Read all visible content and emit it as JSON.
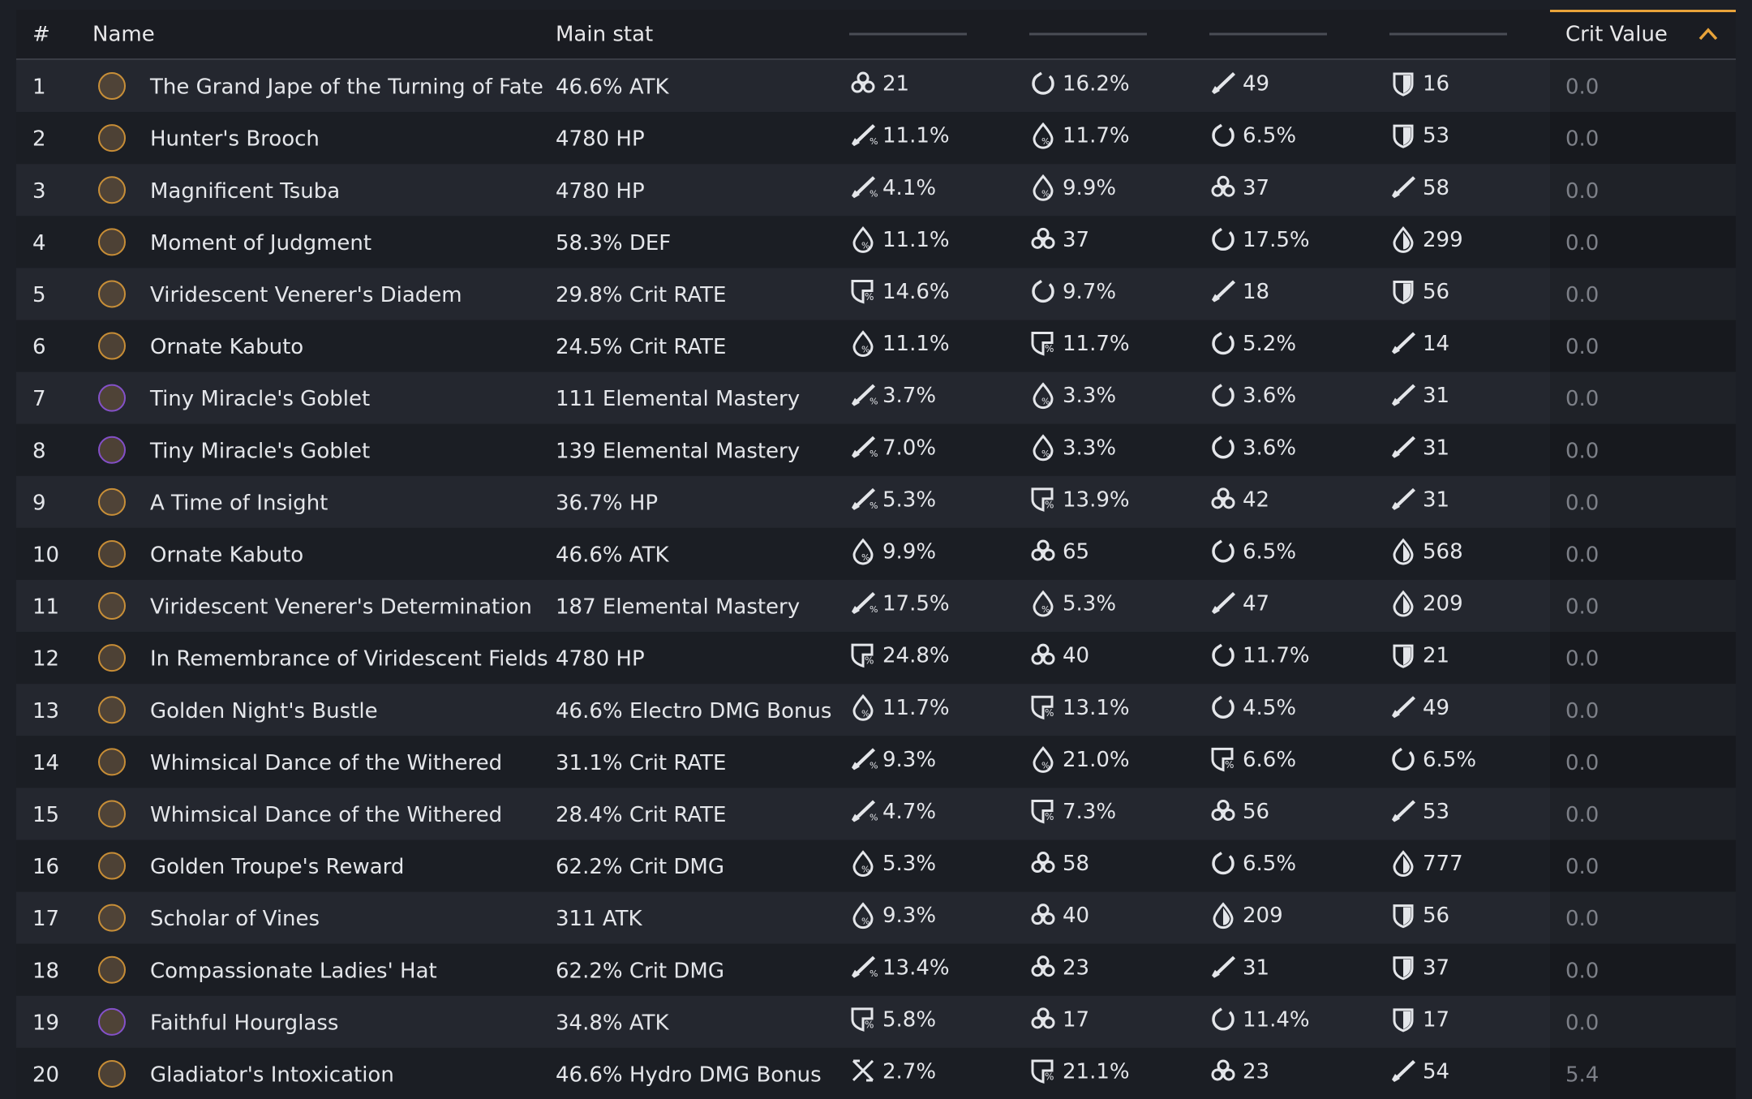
{
  "header": {
    "index": "#",
    "name": "Name",
    "main": "Main stat",
    "crit": "Crit Value"
  },
  "table": {
    "rows": [
      {
        "index": 1,
        "name": "The Grand Jape of the Turning of Fate",
        "color": "#f2a93b",
        "main": "46.6% ATK",
        "subs": [
          "21",
          "16.2%",
          "49",
          "16"
        ],
        "crit": "0.0"
      },
      {
        "index": 2,
        "name": "Hunter's Brooch",
        "color": "#f2a93b",
        "main": "4780 HP",
        "subs": [
          "11.1%",
          "11.7%",
          "6.5%",
          "53"
        ],
        "crit": "0.0"
      },
      {
        "index": 3,
        "name": "Magnificent Tsuba",
        "color": "#f2a93b",
        "main": "4780 HP",
        "subs": [
          "4.1%",
          "9.9%",
          "37",
          "58"
        ],
        "crit": "0.0"
      },
      {
        "index": 4,
        "name": "Moment of Judgment",
        "color": "#f2a93b",
        "main": "58.3% DEF",
        "subs": [
          "11.1%",
          "37",
          "17.5%",
          "299"
        ],
        "crit": "0.0"
      },
      {
        "index": 5,
        "name": "Viridescent Venerer's Diadem",
        "color": "#f2a93b",
        "main": "29.8% Crit RATE",
        "subs": [
          "14.6%",
          "9.7%",
          "18",
          "56"
        ],
        "crit": "0.0"
      },
      {
        "index": 6,
        "name": "Ornate Kabuto",
        "color": "#f2a93b",
        "main": "24.5% Crit RATE",
        "subs": [
          "11.1%",
          "11.7%",
          "5.2%",
          "14"
        ],
        "crit": "0.0"
      },
      {
        "index": 7,
        "name": "Tiny Miracle's Goblet",
        "color": "#9d5cf0",
        "main": "111 Elemental Mastery",
        "subs": [
          "3.7%",
          "3.3%",
          "3.6%",
          "31"
        ],
        "crit": "0.0"
      },
      {
        "index": 8,
        "name": "Tiny Miracle's Goblet",
        "color": "#9d5cf0",
        "main": "139 Elemental Mastery",
        "subs": [
          "7.0%",
          "3.3%",
          "3.6%",
          "31"
        ],
        "crit": "0.0"
      },
      {
        "index": 9,
        "name": "A Time of Insight",
        "color": "#f2a93b",
        "main": "36.7% HP",
        "subs": [
          "5.3%",
          "13.9%",
          "42",
          "31"
        ],
        "crit": "0.0"
      },
      {
        "index": 10,
        "name": "Ornate Kabuto",
        "color": "#f2a93b",
        "main": "46.6% ATK",
        "subs": [
          "9.9%",
          "65",
          "6.5%",
          "568"
        ],
        "crit": "0.0"
      },
      {
        "index": 11,
        "name": "Viridescent Venerer's Determination",
        "color": "#f2a93b",
        "main": "187 Elemental Mastery",
        "subs": [
          "17.5%",
          "5.3%",
          "47",
          "209"
        ],
        "crit": "0.0"
      },
      {
        "index": 12,
        "name": "In Remembrance of Viridescent Fields",
        "color": "#f2a93b",
        "main": "4780 HP",
        "subs": [
          "24.8%",
          "40",
          "11.7%",
          "21"
        ],
        "crit": "0.0"
      },
      {
        "index": 13,
        "name": "Golden Night's Bustle",
        "color": "#f2a93b",
        "main": "46.6% Electro DMG Bonus",
        "subs": [
          "11.7%",
          "13.1%",
          "4.5%",
          "49"
        ],
        "crit": "0.0"
      },
      {
        "index": 14,
        "name": "Whimsical Dance of the Withered",
        "color": "#f2a93b",
        "main": "31.1% Crit RATE",
        "subs": [
          "9.3%",
          "21.0%",
          "6.6%",
          "6.5%"
        ],
        "crit": "0.0"
      },
      {
        "index": 15,
        "name": "Whimsical Dance of the Withered",
        "color": "#f2a93b",
        "main": "28.4% Crit RATE",
        "subs": [
          "4.7%",
          "7.3%",
          "56",
          "53"
        ],
        "crit": "0.0"
      },
      {
        "index": 16,
        "name": "Golden Troupe's Reward",
        "color": "#f2a93b",
        "main": "62.2% Crit DMG",
        "subs": [
          "5.3%",
          "58",
          "6.5%",
          "777"
        ],
        "crit": "0.0"
      },
      {
        "index": 17,
        "name": "Scholar of Vines",
        "color": "#f2a93b",
        "main": "311 ATK",
        "subs": [
          "9.3%",
          "40",
          "209",
          "56"
        ],
        "crit": "0.0"
      },
      {
        "index": 18,
        "name": "Compassionate Ladies' Hat",
        "color": "#f2a93b",
        "main": "62.2% Crit DMG",
        "subs": [
          "13.4%",
          "23",
          "31",
          "37"
        ],
        "crit": "0.0"
      },
      {
        "index": 19,
        "name": "Faithful Hourglass",
        "color": "#9d5cf0",
        "main": "34.8% ATK",
        "subs": [
          "5.8%",
          "17",
          "11.4%",
          "17"
        ],
        "crit": "0.0"
      },
      {
        "index": 20,
        "name": "Gladiator's Intoxication",
        "color": "#f2a93b",
        "main": "46.6% Hydro DMG Bonus",
        "subs": [
          "2.7%",
          "21.1%",
          "23",
          "54"
        ],
        "crit": "5.4"
      }
    ]
  }
}
